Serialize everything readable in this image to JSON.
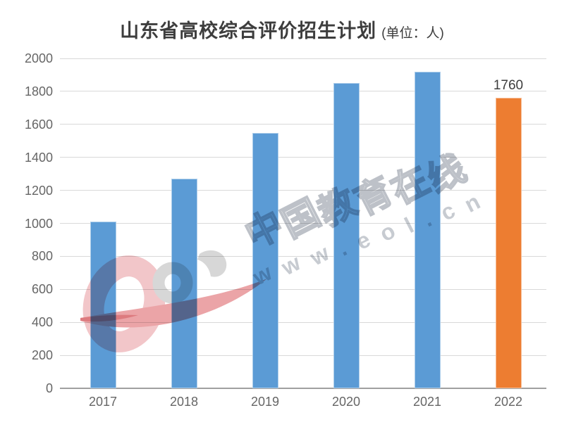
{
  "watermark": {
    "brand_text": "中国教育在线",
    "url_text": "www.eol.cn",
    "logo_name": "eol-logo"
  },
  "chart_data": {
    "type": "bar",
    "title": "山东省高校综合评价招生计划",
    "unit_label": "(单位：人)",
    "categories": [
      "2017",
      "2018",
      "2019",
      "2020",
      "2021",
      "2022"
    ],
    "values": [
      1010,
      1270,
      1550,
      1850,
      1920,
      1760
    ],
    "bar_colors": [
      "#5B9BD5",
      "#5B9BD5",
      "#5B9BD5",
      "#5B9BD5",
      "#5B9BD5",
      "#ED7D31"
    ],
    "data_label": {
      "index": 5,
      "text": "1760"
    },
    "ylim": [
      0,
      2000
    ],
    "ytick_step": 200,
    "yticks": [
      0,
      200,
      400,
      600,
      800,
      1000,
      1200,
      1400,
      1600,
      1800,
      2000
    ],
    "xlabel": "",
    "ylabel": "",
    "grid": true,
    "legend": "none",
    "colors": {
      "bar_blue": "#5B9BD5",
      "bar_orange": "#ED7D31",
      "gridline": "#D9D9D9",
      "axis_line": "#A0A0A0",
      "tick_text": "#666666",
      "title_text": "#3D3D3D",
      "watermark_gray": "#B6BBC2",
      "logo_pink": "#F2C6C9",
      "logo_swoosh": "#EBA4A7",
      "logo_gray": "#D7D7D7"
    }
  }
}
